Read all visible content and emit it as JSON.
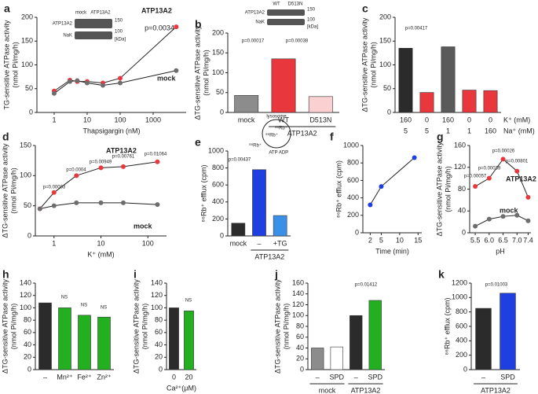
{
  "chart_data": [
    {
      "type": "line",
      "label": "a",
      "log_x": true,
      "x": [
        1,
        3,
        5,
        10,
        30,
        100,
        5000
      ],
      "xlim": [
        0.3,
        10000
      ],
      "xticks": [
        1,
        10,
        100,
        1000
      ],
      "xlabel": "Thapsigargin (nM)",
      "ylim": [
        0,
        200
      ],
      "yticks": [
        0,
        50,
        100,
        150,
        200
      ],
      "ylabel": [
        "TG-sensitive ATPase activity",
        "(nmol Pi/mg/h)"
      ],
      "series": [
        {
          "name": "ATP13A2",
          "color": "#e8383d",
          "values": [
            45,
            68,
            65,
            65,
            62,
            72,
            180
          ]
        },
        {
          "name": "mock",
          "color": "#6d6d6d",
          "values": [
            40,
            65,
            67,
            62,
            57,
            62,
            88
          ]
        }
      ],
      "annotations": [
        "p=0.0034"
      ],
      "inset_labels": [
        "mock",
        "ATP13A2",
        "ATP13A2",
        "NaK",
        "150",
        "100",
        "[kDa]"
      ]
    },
    {
      "type": "bar",
      "label": "b",
      "categories": [
        "mock",
        "WT",
        "D513N"
      ],
      "values": [
        43,
        135,
        40
      ],
      "colors": [
        "#8c8c8c",
        "#e8383d",
        "#fbd0d0"
      ],
      "groups": [
        "ATP13A2"
      ],
      "ylim": [
        0,
        200
      ],
      "yticks": [
        0,
        50,
        100,
        150,
        200
      ],
      "ylabel": [
        "ΔTG-sensitive ATPase activity",
        "(nmol Pi/mg/h)"
      ],
      "annotations": [
        "p=0.00017",
        "p=0.00038"
      ],
      "inset_labels": [
        "WT",
        "D513N",
        "ATP13A2",
        "NaK",
        "150",
        "100",
        "[kDa]"
      ]
    },
    {
      "type": "bar",
      "label": "c",
      "categories": [
        "160",
        "0",
        "160",
        "0",
        "0"
      ],
      "categories2": [
        "5",
        "5",
        "1",
        "1",
        "160"
      ],
      "category_label": "K⁺ (mM)",
      "category2_label": "Na⁺ (mM)",
      "values": [
        135,
        42,
        138,
        47,
        46
      ],
      "colors": [
        "#2b2b2b",
        "#e8383d",
        "#5a5a5a",
        "#e8383d",
        "#e8383d"
      ],
      "ylim": [
        0,
        200
      ],
      "yticks": [
        0,
        50,
        100,
        150,
        200
      ],
      "ylabel": [
        "ΔTG-sensitive ATPase activity",
        "(nmol Pi/mg/h)"
      ],
      "annotations": [
        "p=0.00417"
      ]
    },
    {
      "type": "line",
      "label": "d",
      "log_x": true,
      "x": [
        0.5,
        1,
        3,
        10,
        30,
        160
      ],
      "xlim": [
        0.4,
        250
      ],
      "xticks": [
        1,
        10,
        100
      ],
      "xlabel": "K⁺ (mM)",
      "ylim": [
        0,
        150
      ],
      "yticks": [
        0,
        50,
        100,
        150
      ],
      "ylabel": [
        "ΔTG-sensitive ATPase activity",
        "(nmol Pi/mg/h)"
      ],
      "series": [
        {
          "name": "ATP13A2",
          "color": "#e8383d",
          "values": [
            45,
            72,
            100,
            113,
            115,
            123
          ]
        },
        {
          "name": "mock",
          "color": "#6d6d6d",
          "values": [
            45,
            50,
            55,
            55,
            55,
            52
          ]
        }
      ],
      "annotations": [
        "p=0.00003",
        "p=0.0004",
        "p=0.00949",
        "p=0.00761",
        "p=0.01064"
      ]
    },
    {
      "type": "bar",
      "label": "e",
      "categories": [
        "mock",
        "–",
        "+TG"
      ],
      "values": [
        150,
        780,
        240
      ],
      "colors": [
        "#2b2b2b",
        "#1f3fe0",
        "#3a8fe8"
      ],
      "groups": [
        "ATP13A2"
      ],
      "ylim": [
        0,
        1000
      ],
      "yticks": [
        0,
        200,
        400,
        600,
        800,
        1000
      ],
      "ylabel": [
        "⁸⁶Rb⁺ efflux (cpm)"
      ],
      "annotations": [
        "p=0.00437"
      ],
      "inset_labels": [
        "lysosome",
        "⁸⁶Rb⁺",
        "⁸⁶Rb⁺",
        "⁸⁶Rb⁺",
        "ATP",
        "ADP"
      ]
    },
    {
      "type": "line",
      "label": "f",
      "x": [
        2,
        5,
        14
      ],
      "xlim": [
        0,
        16
      ],
      "xticks": [
        2,
        5,
        10,
        15
      ],
      "xlabel": "Time (min)",
      "ylim": [
        0,
        1000
      ],
      "yticks": [
        0,
        200,
        400,
        600,
        800,
        1000
      ],
      "ylabel": [
        "⁸⁶Rb⁺ efflux (cpm)"
      ],
      "series": [
        {
          "color": "#1f3fe0",
          "values": [
            320,
            530,
            860
          ]
        }
      ]
    },
    {
      "type": "line",
      "label": "g",
      "x": [
        5.5,
        6,
        6.5,
        7,
        7.4
      ],
      "xlim": [
        5.3,
        7.5
      ],
      "xticks": [
        5.5,
        {
          "value": 6,
          "label": "6.0"
        },
        6.5,
        {
          "value": 7,
          "label": "7.0"
        },
        7.4
      ],
      "xlabel": "pH",
      "ylim": [
        0,
        160
      ],
      "yticks": [
        0,
        40,
        80,
        120,
        160
      ],
      "ylabel": [
        "ΔTG-sensitive ATPase activity",
        "(nmol Pi/mg/h)"
      ],
      "series": [
        {
          "name": "ATP13A2",
          "color": "#e8383d",
          "values": [
            85,
            100,
            135,
            113,
            65
          ]
        },
        {
          "name": "mock",
          "color": "#6d6d6d",
          "values": [
            12,
            25,
            30,
            32,
            22
          ]
        }
      ],
      "annotations": [
        "p=0.00057",
        "p=0.00039",
        "p=0.00026",
        "p=0.00801"
      ]
    },
    {
      "type": "bar",
      "label": "h",
      "categories": [
        "–",
        "Mn²⁺",
        "Fe²⁺",
        "Zn²⁺"
      ],
      "values": [
        108,
        100,
        88,
        85
      ],
      "colors": [
        "#2b2b2b",
        "#22b020",
        "#22b020",
        "#22b020"
      ],
      "ylim": [
        0,
        140
      ],
      "yticks": [
        0,
        20,
        40,
        60,
        80,
        100,
        120,
        140
      ],
      "ylabel": [
        "ΔTG-sensitive ATPase activity",
        "(nmol Pi/mg/h)"
      ],
      "annotations": [
        "NS",
        "NS",
        "NS"
      ]
    },
    {
      "type": "bar",
      "label": "i",
      "categories": [
        "0",
        "20"
      ],
      "values": [
        100,
        95
      ],
      "colors": [
        "#2b2b2b",
        "#22b020"
      ],
      "xlabel": "Ca²⁺(μM)",
      "ylim": [
        0,
        140
      ],
      "yticks": [
        0,
        20,
        40,
        60,
        80,
        100,
        120,
        140
      ],
      "ylabel": [
        "ΔTG-sensitive ATPase activity",
        "(nmol Pi/mg/h)"
      ],
      "annotations": [
        "NS"
      ]
    },
    {
      "type": "bar",
      "label": "j",
      "categories": [
        "–",
        "SPD",
        "–",
        "SPD"
      ],
      "values": [
        40,
        42,
        100,
        128
      ],
      "colors": [
        "#8c8c8c",
        "#ffffff",
        "#2b2b2b",
        "#22b020"
      ],
      "groups": [
        "mock",
        "ATP13A2"
      ],
      "ylim": [
        0,
        160
      ],
      "yticks": [
        0,
        20,
        40,
        60,
        80,
        100,
        120,
        140,
        160
      ],
      "ylabel": [
        "ΔTG-sensitive ATPase activity",
        "(nmol Pi/mg/h)"
      ],
      "annotations": [
        "p=0.01412"
      ]
    },
    {
      "type": "bar",
      "label": "k",
      "categories": [
        "–",
        "SPD"
      ],
      "values": [
        850,
        1060
      ],
      "colors": [
        "#2b2b2b",
        "#1f3fe0"
      ],
      "groups": [
        "ATP13A2"
      ],
      "ylim": [
        0,
        1200
      ],
      "yticks": [
        0,
        200,
        400,
        600,
        800,
        1000,
        1200
      ],
      "ylabel": [
        "⁸⁶Rb⁺ efflux (cpm)"
      ],
      "annotations": [
        "p=0.01003"
      ]
    }
  ]
}
